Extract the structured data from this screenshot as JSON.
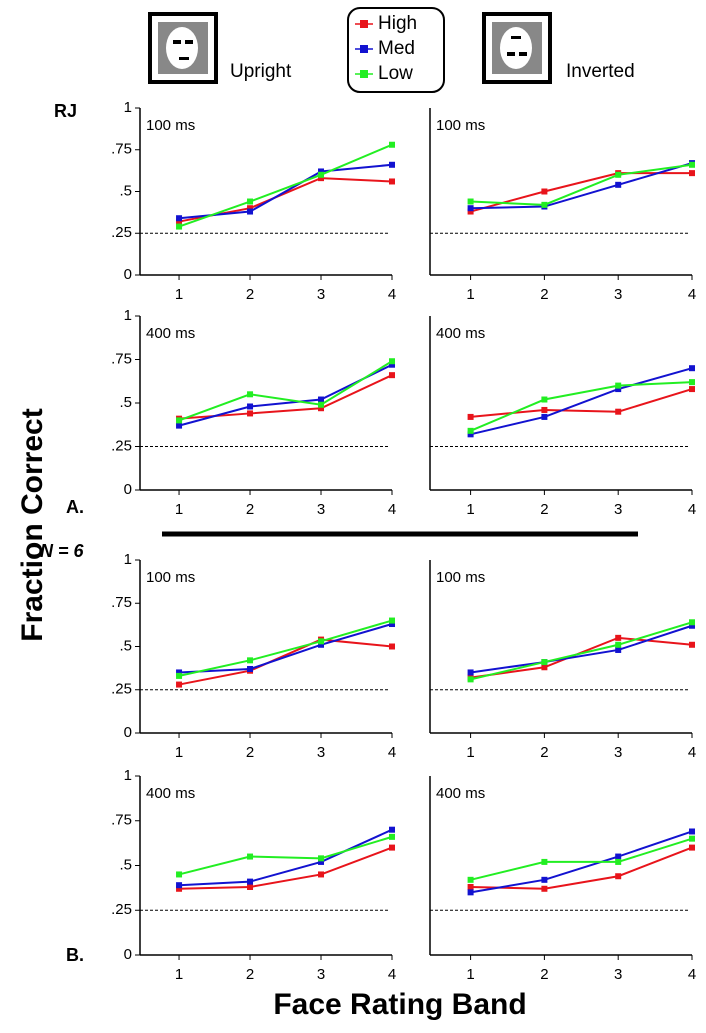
{
  "figure": {
    "ylabel": "Fraction Correct",
    "xlabel": "Face Rating Band",
    "upright": "Upright",
    "inverted": "Inverted",
    "subject": "RJ",
    "panel_a": "A.",
    "panel_b": "B.",
    "n_label": "N = 6"
  },
  "chart_data": [
    {
      "type": "line",
      "title": "100 ms",
      "x": [
        1,
        2,
        3,
        4
      ],
      "xlim": [
        0.45,
        4
      ],
      "xticks": [
        1,
        2,
        3,
        4
      ],
      "ylim": [
        0,
        1
      ],
      "yticks": [
        0,
        {
          "value": 0.25,
          "label": ".25"
        },
        {
          "value": 0.5,
          "label": ".5"
        },
        {
          "value": 0.75,
          "label": ".75"
        },
        1
      ],
      "reference_line": 0.25,
      "series": [
        {
          "name": "High",
          "color": "#e8141b",
          "values": [
            0.32,
            0.4,
            0.58,
            0.56
          ]
        },
        {
          "name": "Med",
          "color": "#1212d0",
          "values": [
            0.34,
            0.38,
            0.62,
            0.66
          ]
        },
        {
          "name": "Low",
          "color": "#22ee22",
          "values": [
            0.29,
            0.44,
            0.6,
            0.78
          ]
        }
      ]
    },
    {
      "type": "line",
      "title": "100 ms",
      "x": [
        1,
        2,
        3,
        4
      ],
      "xlim": [
        0.45,
        4
      ],
      "xticks": [
        1,
        2,
        3,
        4
      ],
      "ylim": [
        0,
        1
      ],
      "reference_line": 0.25,
      "series": [
        {
          "name": "High",
          "color": "#e8141b",
          "values": [
            0.38,
            0.5,
            0.61,
            0.61
          ]
        },
        {
          "name": "Med",
          "color": "#1212d0",
          "values": [
            0.4,
            0.41,
            0.54,
            0.67
          ]
        },
        {
          "name": "Low",
          "color": "#22ee22",
          "values": [
            0.44,
            0.42,
            0.6,
            0.66
          ]
        }
      ]
    },
    {
      "type": "line",
      "title": "400 ms",
      "x": [
        1,
        2,
        3,
        4
      ],
      "xlim": [
        0.45,
        4
      ],
      "xticks": [
        1,
        2,
        3,
        4
      ],
      "ylim": [
        0,
        1
      ],
      "yticks": [
        0,
        {
          "value": 0.25,
          "label": ".25"
        },
        {
          "value": 0.5,
          "label": ".5"
        },
        {
          "value": 0.75,
          "label": ".75"
        },
        1
      ],
      "reference_line": 0.25,
      "series": [
        {
          "name": "High",
          "color": "#e8141b",
          "values": [
            0.41,
            0.44,
            0.47,
            0.66
          ]
        },
        {
          "name": "Med",
          "color": "#1212d0",
          "values": [
            0.37,
            0.48,
            0.52,
            0.72
          ]
        },
        {
          "name": "Low",
          "color": "#22ee22",
          "values": [
            0.4,
            0.55,
            0.49,
            0.74
          ]
        }
      ]
    },
    {
      "type": "line",
      "title": "400 ms",
      "x": [
        1,
        2,
        3,
        4
      ],
      "xlim": [
        0.45,
        4
      ],
      "xticks": [
        1,
        2,
        3,
        4
      ],
      "ylim": [
        0,
        1
      ],
      "reference_line": 0.25,
      "series": [
        {
          "name": "High",
          "color": "#e8141b",
          "values": [
            0.42,
            0.46,
            0.45,
            0.58
          ]
        },
        {
          "name": "Med",
          "color": "#1212d0",
          "values": [
            0.32,
            0.42,
            0.58,
            0.7
          ]
        },
        {
          "name": "Low",
          "color": "#22ee22",
          "values": [
            0.34,
            0.52,
            0.6,
            0.62
          ]
        }
      ]
    },
    {
      "type": "line",
      "title": "100 ms",
      "x": [
        1,
        2,
        3,
        4
      ],
      "xlim": [
        0.45,
        4
      ],
      "xticks": [
        1,
        2,
        3,
        4
      ],
      "ylim": [
        0,
        1
      ],
      "yticks": [
        0,
        {
          "value": 0.25,
          "label": ".25"
        },
        {
          "value": 0.5,
          "label": ".5"
        },
        {
          "value": 0.75,
          "label": ".75"
        },
        1
      ],
      "reference_line": 0.25,
      "series": [
        {
          "name": "High",
          "color": "#e8141b",
          "values": [
            0.28,
            0.36,
            0.54,
            0.5
          ]
        },
        {
          "name": "Med",
          "color": "#1212d0",
          "values": [
            0.35,
            0.37,
            0.51,
            0.63
          ]
        },
        {
          "name": "Low",
          "color": "#22ee22",
          "values": [
            0.33,
            0.42,
            0.53,
            0.65
          ]
        }
      ]
    },
    {
      "type": "line",
      "title": "100 ms",
      "x": [
        1,
        2,
        3,
        4
      ],
      "xlim": [
        0.45,
        4
      ],
      "xticks": [
        1,
        2,
        3,
        4
      ],
      "ylim": [
        0,
        1
      ],
      "reference_line": 0.25,
      "series": [
        {
          "name": "High",
          "color": "#e8141b",
          "values": [
            0.32,
            0.38,
            0.55,
            0.51
          ]
        },
        {
          "name": "Med",
          "color": "#1212d0",
          "values": [
            0.35,
            0.41,
            0.48,
            0.62
          ]
        },
        {
          "name": "Low",
          "color": "#22ee22",
          "values": [
            0.31,
            0.41,
            0.51,
            0.64
          ]
        }
      ]
    },
    {
      "type": "line",
      "title": "400 ms",
      "x": [
        1,
        2,
        3,
        4
      ],
      "xlim": [
        0.45,
        4
      ],
      "xticks": [
        1,
        2,
        3,
        4
      ],
      "ylim": [
        0,
        1
      ],
      "yticks": [
        0,
        {
          "value": 0.25,
          "label": ".25"
        },
        {
          "value": 0.5,
          "label": ".5"
        },
        {
          "value": 0.75,
          "label": ".75"
        },
        1
      ],
      "reference_line": 0.25,
      "series": [
        {
          "name": "High",
          "color": "#e8141b",
          "values": [
            0.37,
            0.38,
            0.45,
            0.6
          ]
        },
        {
          "name": "Med",
          "color": "#1212d0",
          "values": [
            0.39,
            0.41,
            0.52,
            0.7
          ]
        },
        {
          "name": "Low",
          "color": "#22ee22",
          "values": [
            0.45,
            0.55,
            0.54,
            0.66
          ]
        }
      ]
    },
    {
      "type": "line",
      "title": "400 ms",
      "x": [
        1,
        2,
        3,
        4
      ],
      "xlim": [
        0.45,
        4
      ],
      "xticks": [
        1,
        2,
        3,
        4
      ],
      "ylim": [
        0,
        1
      ],
      "reference_line": 0.25,
      "series": [
        {
          "name": "High",
          "color": "#e8141b",
          "values": [
            0.38,
            0.37,
            0.44,
            0.6
          ]
        },
        {
          "name": "Med",
          "color": "#1212d0",
          "values": [
            0.35,
            0.42,
            0.55,
            0.69
          ]
        },
        {
          "name": "Low",
          "color": "#22ee22",
          "values": [
            0.42,
            0.52,
            0.52,
            0.65
          ]
        }
      ]
    }
  ]
}
